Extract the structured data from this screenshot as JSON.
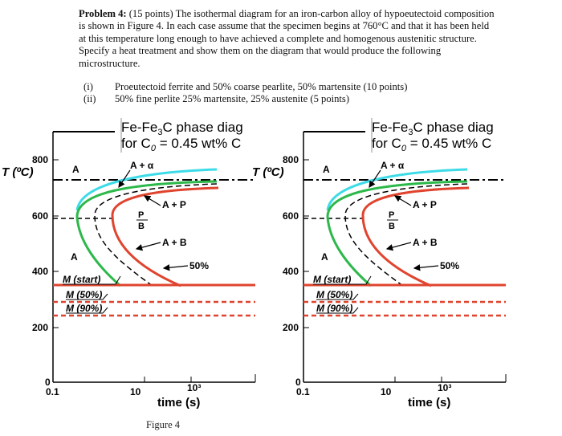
{
  "problem": {
    "label": "Problem 4:",
    "text": "(15 points) The isothermal diagram for an iron-carbon alloy of hypoeutectoid composition is shown in Figure 4. In each case assume that the specimen begins at 760°C and that it has been held at this temperature long enough to have achieved a complete and homogenous austenitic structure. Specify a heat treatment and show them on the diagram that would produce the following microstructure.",
    "parts": [
      {
        "num": "(i)",
        "text": "Proeutectoid ferrite and 50% coarse pearlite, 50% martensite (10 points)"
      },
      {
        "num": "(ii)",
        "text": "50% fine perlite 25% martensite, 25% austenite (5 points)"
      }
    ]
  },
  "diagram": {
    "title_line1_a": "Fe-Fe",
    "title_line1_sub": "3",
    "title_line1_b": "C phase diag",
    "title_line2_a": "for C",
    "title_line2_sub": "0",
    "title_line2_b": " = 0.45 wt% C",
    "y_label": "T (ºC)",
    "y_ticks": [
      "800",
      "600",
      "400",
      "200",
      "0"
    ],
    "x_ticks": [
      "0.1",
      "10",
      "10³"
    ],
    "x_label": "time (s)",
    "labels": {
      "austenite": "A",
      "ferrite_region": "A + α",
      "pearlite_region": "A + P",
      "pearlite": "P",
      "bainite_marker": "B",
      "bainite_region": "A + B",
      "fifty_percent": "50%",
      "austenite_low": "A",
      "m_start": "M (start)",
      "m50": "M (50%)",
      "m90": "M (90%)"
    },
    "colors": {
      "ferrite_curve": "#3ddbe8",
      "start_curve": "#2db84a",
      "finish_curve": "#e0442e",
      "martensite_line": "#e0442e"
    }
  },
  "figure": {
    "caption": "Figure 4"
  }
}
